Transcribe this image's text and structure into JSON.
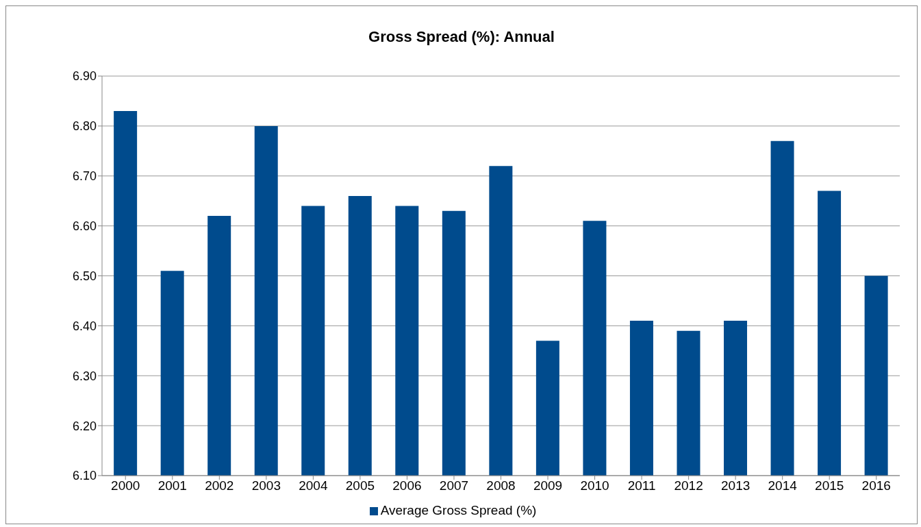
{
  "chart_data": {
    "type": "bar",
    "title": "Gross Spread (%):  Annual",
    "categories": [
      "2000",
      "2001",
      "2002",
      "2003",
      "2004",
      "2005",
      "2006",
      "2007",
      "2008",
      "2009",
      "2010",
      "2011",
      "2012",
      "2013",
      "2014",
      "2015",
      "2016"
    ],
    "series": [
      {
        "name": "Average Gross Spread (%)",
        "color": "#004b8d",
        "values": [
          6.83,
          6.51,
          6.62,
          6.8,
          6.64,
          6.66,
          6.64,
          6.63,
          6.72,
          6.37,
          6.61,
          6.41,
          6.39,
          6.41,
          6.77,
          6.67,
          6.5
        ]
      }
    ],
    "ylim": [
      6.1,
      6.9
    ],
    "yticks": [
      {
        "value": 6.1,
        "label": "6.10"
      },
      {
        "value": 6.2,
        "label": "6.20"
      },
      {
        "value": 6.3,
        "label": "6.30"
      },
      {
        "value": 6.4,
        "label": "6.40"
      },
      {
        "value": 6.5,
        "label": "6.50"
      },
      {
        "value": 6.6,
        "label": "6.60"
      },
      {
        "value": 6.7,
        "label": "6.70"
      },
      {
        "value": 6.8,
        "label": "6.80"
      },
      {
        "value": 6.9,
        "label": "6.90"
      }
    ],
    "grid": "y",
    "legend": "bottom"
  }
}
